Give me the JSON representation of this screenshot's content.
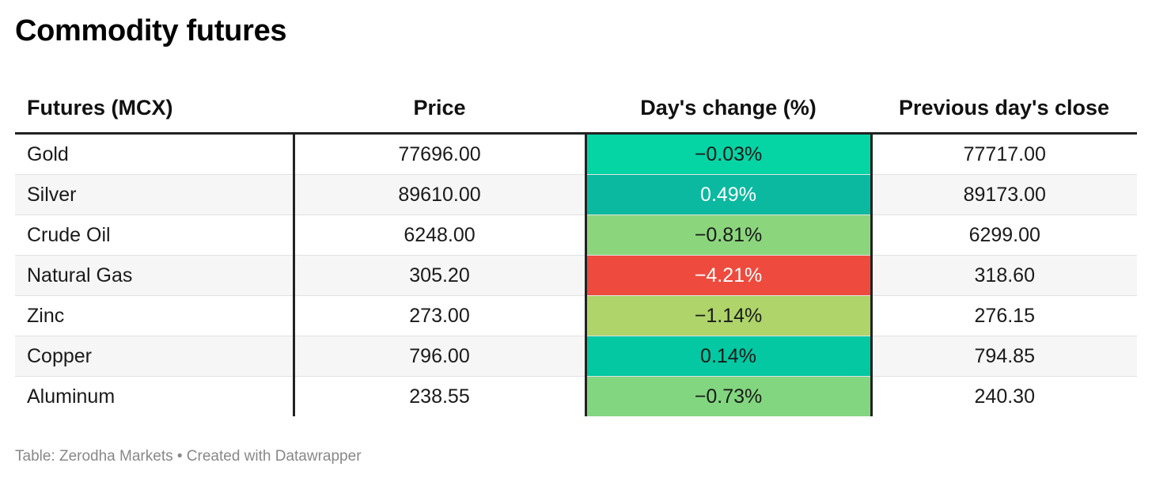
{
  "title": "Commodity futures",
  "chart_data": {
    "type": "table",
    "columns": [
      "Futures (MCX)",
      "Price",
      "Day's change (%)",
      "Previous day's close"
    ],
    "rows": [
      {
        "name": "Gold",
        "price": "77696.00",
        "change": "−0.03%",
        "change_value": -0.03,
        "prev_close": "77717.00",
        "color": "#05d4a4",
        "text_color": "#1a1a1a"
      },
      {
        "name": "Silver",
        "price": "89610.00",
        "change": "0.49%",
        "change_value": 0.49,
        "prev_close": "89173.00",
        "color": "#0ab9a0",
        "text_color": "#ffffff"
      },
      {
        "name": "Crude Oil",
        "price": "6248.00",
        "change": "−0.81%",
        "change_value": -0.81,
        "prev_close": "6299.00",
        "color": "#8bd67d",
        "text_color": "#1a1a1a"
      },
      {
        "name": "Natural Gas",
        "price": "305.20",
        "change": "−4.21%",
        "change_value": -4.21,
        "prev_close": "318.60",
        "color": "#ee4b3e",
        "text_color": "#ffffff"
      },
      {
        "name": "Zinc",
        "price": "273.00",
        "change": "−1.14%",
        "change_value": -1.14,
        "prev_close": "276.15",
        "color": "#aed46a",
        "text_color": "#1a1a1a"
      },
      {
        "name": "Copper",
        "price": "796.00",
        "change": "0.14%",
        "change_value": 0.14,
        "prev_close": "794.85",
        "color": "#03c8a2",
        "text_color": "#1a1a1a"
      },
      {
        "name": "Aluminum",
        "price": "238.55",
        "change": "−0.73%",
        "change_value": -0.73,
        "prev_close": "240.30",
        "color": "#82d67f",
        "text_color": "#1a1a1a"
      }
    ]
  },
  "footer": "Table: Zerodha Markets • Created with Datawrapper"
}
